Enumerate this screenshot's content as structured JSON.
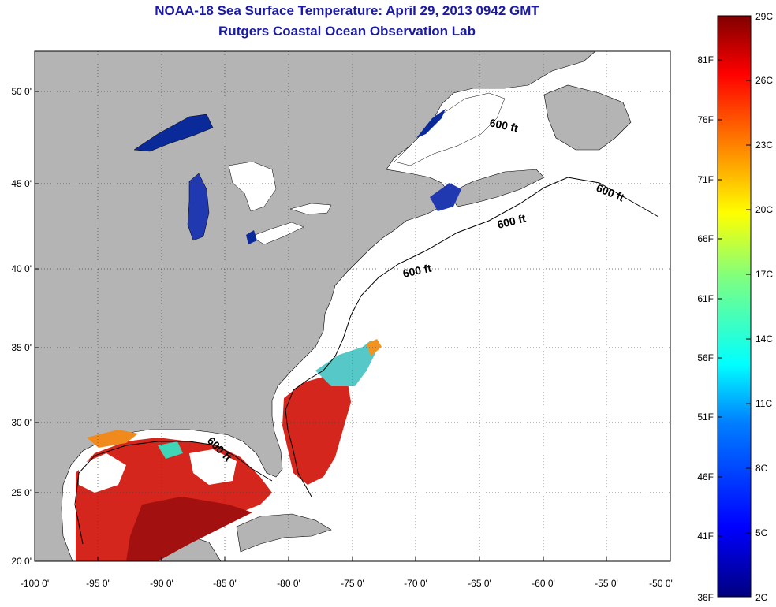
{
  "title": "NOAA-18 Sea Surface Temperature:  April 29, 2013 0942 GMT",
  "subtitle": "Rutgers Coastal Ocean Observation Lab",
  "map": {
    "lon_ticks": [
      "-100 0'",
      "-95 0'",
      "-90 0'",
      "-85 0'",
      "-80 0'",
      "-75 0'",
      "-70 0'",
      "-65 0'",
      "-60 0'",
      "-55 0'",
      "-50 0'"
    ],
    "lat_ticks": [
      "50 0'",
      "45 0'",
      "40 0'",
      "35 0'",
      "30 0'",
      "25 0'",
      "20 0'"
    ],
    "contour_labels": [
      "600 ft",
      "600 ft",
      "600 ft",
      "600 ft",
      "600 ft"
    ],
    "colors": {
      "land": "#b4b4b4",
      "water": "#ffffff",
      "lakes": "#0a2a9a",
      "warm": "#d4261c"
    }
  },
  "colorbar": {
    "celsius": [
      "29C",
      "26C",
      "23C",
      "20C",
      "17C",
      "14C",
      "11C",
      "8C",
      "5C",
      "2C"
    ],
    "fahrenheit": [
      "81F",
      "76F",
      "71F",
      "66F",
      "61F",
      "56F",
      "51F",
      "46F",
      "41F",
      "36F"
    ]
  }
}
